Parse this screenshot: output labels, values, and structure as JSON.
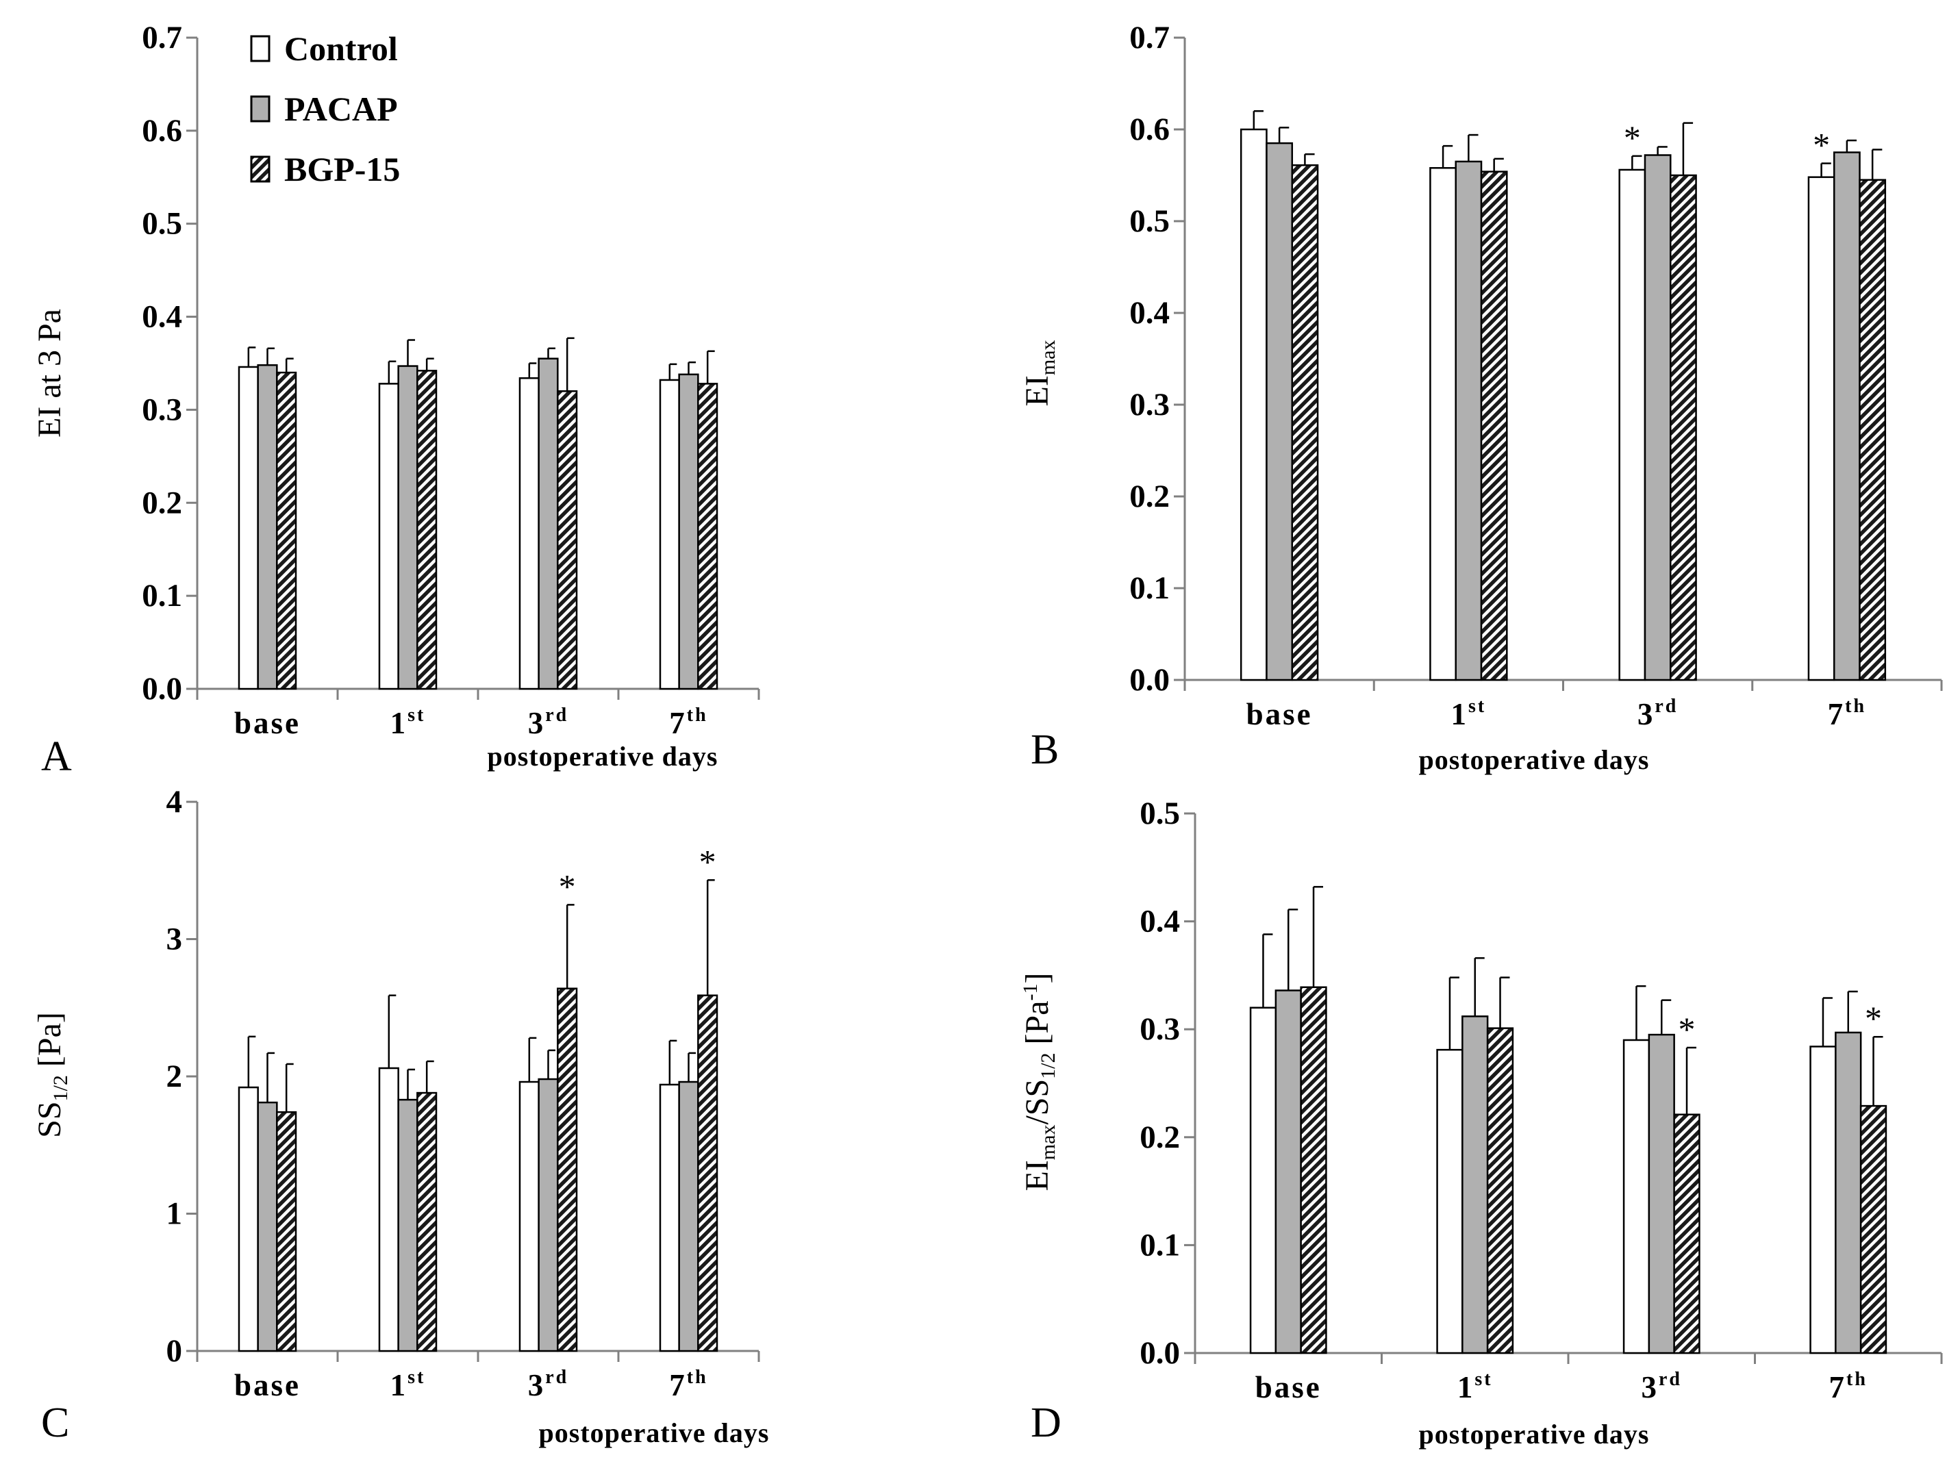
{
  "legend": [
    {
      "label": "Control",
      "fill": "white"
    },
    {
      "label": "PACAP",
      "fill": "gray"
    },
    {
      "label": "BGP-15",
      "fill": "hatch"
    }
  ],
  "colors": {
    "control": "#ffffff",
    "pacap": "#b0b0b0",
    "bgp": "#1a1a1a",
    "axis": "#808080",
    "bar_stroke": "#000000"
  },
  "chart_data": [
    {
      "panel": "A",
      "type": "bar",
      "ylabel": {
        "main": "EI at 3 Pa",
        "sub": "",
        "rest": ""
      },
      "xlabel": "postoperative days",
      "ylim": [
        0,
        0.7
      ],
      "yticks": [
        "0.0",
        "0.1",
        "0.2",
        "0.3",
        "0.4",
        "0.5",
        "0.6",
        "0.7"
      ],
      "categories": [
        {
          "main": "base",
          "sup": ""
        },
        {
          "main": "1",
          "sup": "st"
        },
        {
          "main": "3",
          "sup": "rd"
        },
        {
          "main": "7",
          "sup": "th"
        }
      ],
      "series": [
        {
          "name": "Control",
          "values": [
            0.346,
            0.328,
            0.334,
            0.332
          ],
          "errors": [
            0.021,
            0.024,
            0.016,
            0.017
          ]
        },
        {
          "name": "PACAP",
          "values": [
            0.348,
            0.347,
            0.355,
            0.338
          ],
          "errors": [
            0.018,
            0.028,
            0.011,
            0.013
          ]
        },
        {
          "name": "BGP-15",
          "values": [
            0.34,
            0.342,
            0.32,
            0.328
          ],
          "errors": [
            0.015,
            0.013,
            0.057,
            0.035
          ]
        }
      ],
      "significance": []
    },
    {
      "panel": "B",
      "type": "bar",
      "ylabel": {
        "main": "EI",
        "sub": "max",
        "rest": ""
      },
      "xlabel": "postoperative days",
      "ylim": [
        0,
        0.7
      ],
      "yticks": [
        "0.0",
        "0.1",
        "0.2",
        "0.3",
        "0.4",
        "0.5",
        "0.6",
        "0.7"
      ],
      "categories": [
        {
          "main": "base",
          "sup": ""
        },
        {
          "main": "1",
          "sup": "st"
        },
        {
          "main": "3",
          "sup": "rd"
        },
        {
          "main": "7",
          "sup": "th"
        }
      ],
      "series": [
        {
          "name": "Control",
          "values": [
            0.6,
            0.558,
            0.556,
            0.548
          ],
          "errors": [
            0.02,
            0.024,
            0.015,
            0.015
          ]
        },
        {
          "name": "PACAP",
          "values": [
            0.585,
            0.565,
            0.572,
            0.575
          ],
          "errors": [
            0.017,
            0.029,
            0.009,
            0.013
          ]
        },
        {
          "name": "BGP-15",
          "values": [
            0.561,
            0.554,
            0.55,
            0.545
          ],
          "errors": [
            0.012,
            0.014,
            0.057,
            0.033
          ]
        }
      ],
      "significance": [
        {
          "category": 2,
          "series": 0,
          "mark": "*"
        },
        {
          "category": 3,
          "series": 0,
          "mark": "*"
        }
      ]
    },
    {
      "panel": "C",
      "type": "bar",
      "ylabel": {
        "main": "SS",
        "sub": "1/2",
        "rest": " [Pa]"
      },
      "xlabel": "postoperative days",
      "ylim": [
        0,
        4
      ],
      "yticks": [
        "0",
        "1",
        "2",
        "3",
        "4"
      ],
      "categories": [
        {
          "main": "base",
          "sup": ""
        },
        {
          "main": "1",
          "sup": "st"
        },
        {
          "main": "3",
          "sup": "rd"
        },
        {
          "main": "7",
          "sup": "th"
        }
      ],
      "series": [
        {
          "name": "Control",
          "values": [
            1.92,
            2.06,
            1.96,
            1.94
          ],
          "errors": [
            0.37,
            0.53,
            0.32,
            0.32
          ]
        },
        {
          "name": "PACAP",
          "values": [
            1.81,
            1.83,
            1.98,
            1.96
          ],
          "errors": [
            0.36,
            0.22,
            0.21,
            0.21
          ]
        },
        {
          "name": "BGP-15",
          "values": [
            1.74,
            1.88,
            2.64,
            2.59
          ],
          "errors": [
            0.35,
            0.23,
            0.61,
            0.84
          ]
        }
      ],
      "significance": [
        {
          "category": 2,
          "series": 2,
          "mark": "*"
        },
        {
          "category": 3,
          "series": 2,
          "mark": "*"
        }
      ]
    },
    {
      "panel": "D",
      "type": "bar",
      "ylabel": {
        "main": "EI",
        "sub": "max",
        "rest": "/SS",
        "sub2": "1/2",
        "rest2": " [Pa",
        "sup": "-1",
        "rest3": "]"
      },
      "xlabel": "postoperative days",
      "ylim": [
        0,
        0.5
      ],
      "yticks": [
        "0.0",
        "0.1",
        "0.2",
        "0.3",
        "0.4",
        "0.5"
      ],
      "categories": [
        {
          "main": "base",
          "sup": ""
        },
        {
          "main": "1",
          "sup": "st"
        },
        {
          "main": "3",
          "sup": "rd"
        },
        {
          "main": "7",
          "sup": "th"
        }
      ],
      "series": [
        {
          "name": "Control",
          "values": [
            0.32,
            0.281,
            0.29,
            0.284
          ],
          "errors": [
            0.068,
            0.067,
            0.05,
            0.045
          ]
        },
        {
          "name": "PACAP",
          "values": [
            0.336,
            0.312,
            0.295,
            0.297
          ],
          "errors": [
            0.075,
            0.054,
            0.032,
            0.038
          ]
        },
        {
          "name": "BGP-15",
          "values": [
            0.339,
            0.301,
            0.221,
            0.229
          ],
          "errors": [
            0.093,
            0.047,
            0.062,
            0.064
          ]
        }
      ],
      "significance": [
        {
          "category": 2,
          "series": 2,
          "mark": "*"
        },
        {
          "category": 3,
          "series": 2,
          "mark": "*"
        }
      ]
    }
  ]
}
